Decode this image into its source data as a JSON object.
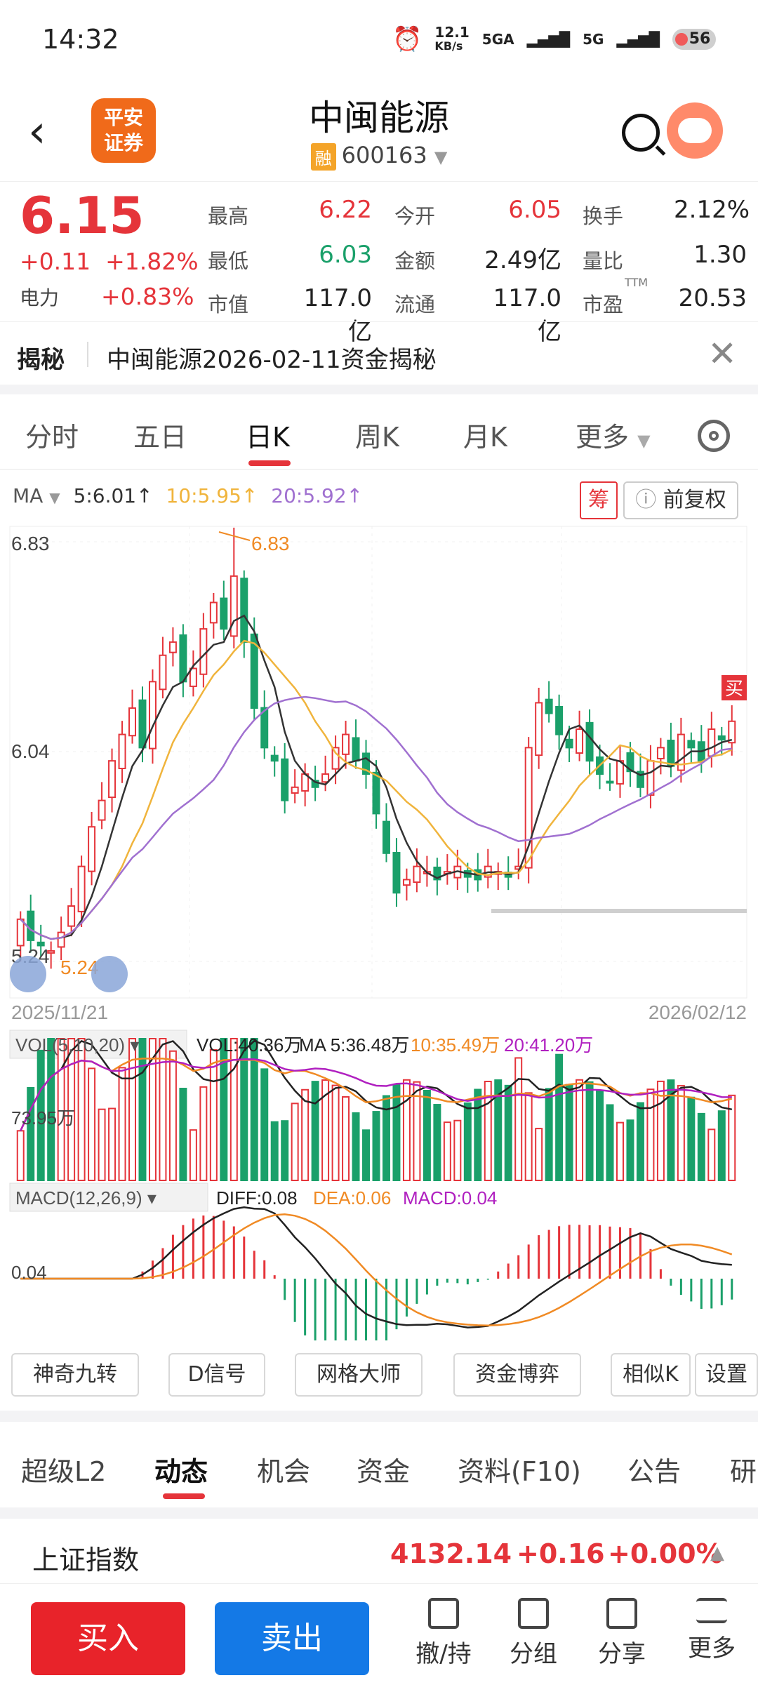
{
  "status": {
    "time": "14:32",
    "speed": "12.1",
    "speed_unit": "KB/s",
    "net1": "5GA",
    "net2": "5G",
    "battery": "56"
  },
  "header": {
    "logo_line1": "平安",
    "logo_line2": "证券",
    "name": "中闽能源",
    "rong": "融",
    "code": "600163"
  },
  "quote": {
    "price": "6.15",
    "change": "+0.11",
    "change_pct": "+1.82%",
    "sector": "电力",
    "sector_pct": "+0.83%",
    "cells": [
      {
        "label": "最高",
        "value": "6.22",
        "color": "red"
      },
      {
        "label": "今开",
        "value": "6.05",
        "color": "red"
      },
      {
        "label": "换手",
        "value": "2.12%",
        "color": "black"
      },
      {
        "label": "最低",
        "value": "6.03",
        "color": "green"
      },
      {
        "label": "金额",
        "value": "2.49亿",
        "color": "black"
      },
      {
        "label": "量比",
        "value": "1.30",
        "color": "black"
      },
      {
        "label": "市值",
        "value": "117.0亿",
        "color": "black"
      },
      {
        "label": "流通",
        "value": "117.0亿",
        "color": "black"
      },
      {
        "label": "市盈",
        "value": "20.53",
        "color": "black"
      }
    ],
    "ttm": "TTM"
  },
  "banner": {
    "label": "揭秘",
    "text": "中闽能源2026-02-11资金揭秘"
  },
  "ktabs": [
    "分时",
    "五日",
    "日K",
    "周K",
    "月K",
    "更多"
  ],
  "ma": {
    "label": "MA",
    "ma5": "5:6.01↑",
    "ma10": "10:5.95↑",
    "ma20": "20:5.92↑",
    "btn_chou": "筹",
    "btn_fq": "前复权"
  },
  "kline": {
    "high_label": "6.83",
    "mid_label": "6.04",
    "low_label": "5.24",
    "peak_note": "6.83",
    "low_note": "5.24",
    "buy_tag": "买",
    "date_start": "2025/11/21",
    "date_end": "2026/02/12"
  },
  "vol": {
    "label": "VOL(5,10,20)",
    "vol": "VOL:40.36万",
    "ma5": "MA 5:36.48万",
    "ma10": "10:35.49万",
    "ma20": "20:41.20万",
    "axis": "73.95万"
  },
  "macd": {
    "label": "MACD(12,26,9)",
    "diff": "DIFF:0.08",
    "dea": "DEA:0.06",
    "macd": "MACD:0.04",
    "axis": "0.04"
  },
  "functions": [
    "神奇九转",
    "D信号",
    "网格大师",
    "资金博弈",
    "相似K",
    "设置"
  ],
  "section_tabs": [
    "超级L2",
    "动态",
    "机会",
    "资金",
    "资料(F10)",
    "公告",
    "研"
  ],
  "index": {
    "name": "上证指数",
    "value": "4132.14",
    "change": "+0.16",
    "pct": "+0.00%"
  },
  "bottom": {
    "buy": "买入",
    "sell": "卖出",
    "items": [
      "撤/持",
      "分组",
      "分享",
      "更多"
    ]
  },
  "colors": {
    "up": "#e5343a",
    "down": "#1aa06a",
    "ma5": "#333333",
    "ma10": "#f0b43c",
    "ma20": "#a070d0"
  }
}
